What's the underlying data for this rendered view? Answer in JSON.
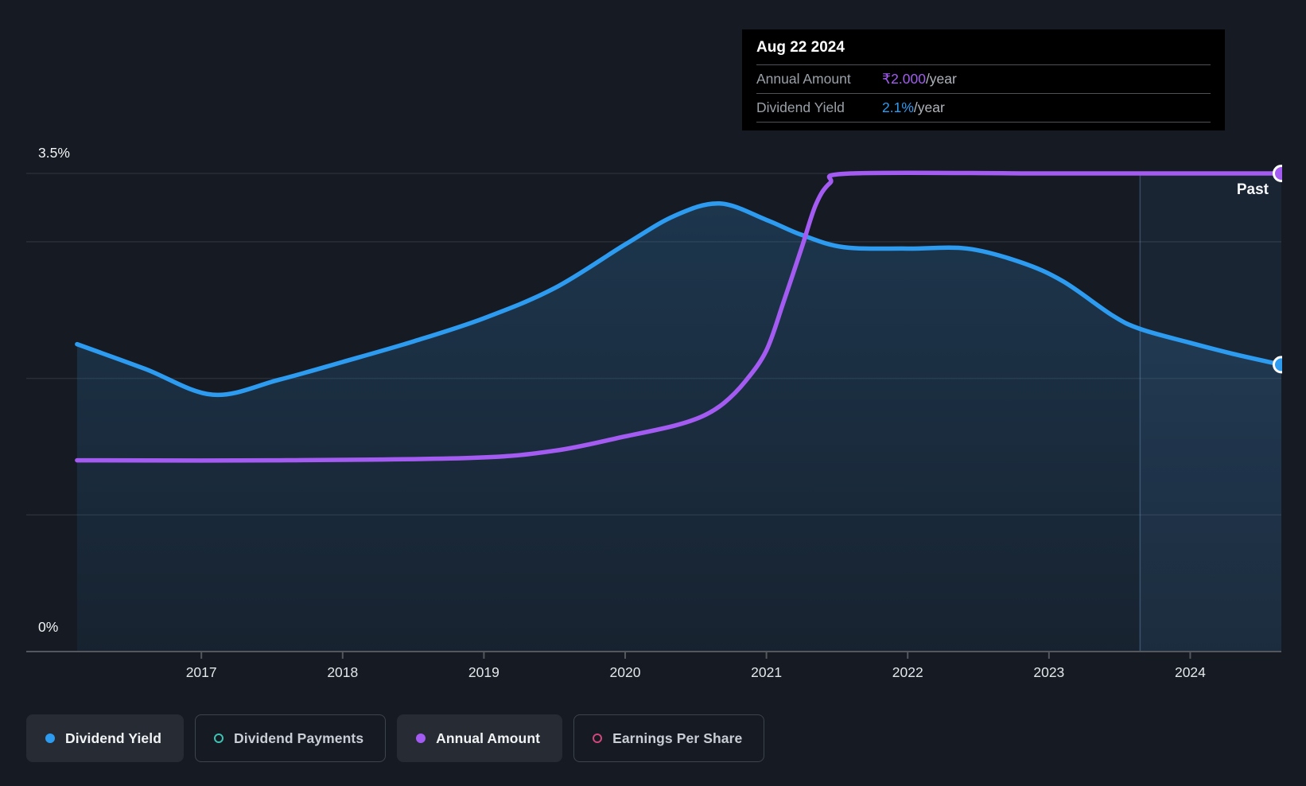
{
  "tooltip": {
    "date": "Aug 22 2024",
    "rows": [
      {
        "id": "annual-amount",
        "label": "Annual Amount",
        "value": "₹2.000",
        "suffix": "/year",
        "color": "#a35bf2"
      },
      {
        "id": "dividend-yield",
        "label": "Dividend Yield",
        "value": "2.1%",
        "suffix": "/year",
        "color": "#2d9bf0"
      }
    ]
  },
  "past_label": "Past",
  "legend": {
    "items": [
      {
        "label": "Dividend Yield",
        "marker": "filled",
        "color": "#2d9bf0",
        "active": true
      },
      {
        "label": "Dividend Payments",
        "marker": "hollow",
        "color": "#3ec2b1",
        "active": false
      },
      {
        "label": "Annual Amount",
        "marker": "filled",
        "color": "#a35bf2",
        "active": true
      },
      {
        "label": "Earnings Per Share",
        "marker": "hollow",
        "color": "#d1477b",
        "active": false
      }
    ]
  },
  "chart_data": {
    "type": "line",
    "title": "Dividend history: yield and annual amount over time",
    "x_axis": {
      "range": [
        2016.115,
        2024.645
      ],
      "ticks": [
        2017,
        2018,
        2019,
        2020,
        2021,
        2022,
        2023,
        2024
      ]
    },
    "y_axis_yield": {
      "label_top": "3.5%",
      "label_bottom": "0%",
      "range": [
        0,
        3.5
      ],
      "gridlines": [
        3.5,
        3.0,
        2.0,
        1.0
      ]
    },
    "y_axis_amount": {
      "range": [
        0,
        2.0
      ],
      "unit": "₹"
    },
    "past_band": {
      "from": 2023.645,
      "to": 2024.645
    },
    "grid": "on",
    "legend_position": "bottom",
    "series": [
      {
        "name": "Dividend Yield",
        "axis": "yield",
        "color": "#2d9bf0",
        "area": true,
        "end_marker": true,
        "points": [
          [
            2016.12,
            2.25
          ],
          [
            2016.6,
            2.07
          ],
          [
            2017.08,
            1.88
          ],
          [
            2017.55,
            1.99
          ],
          [
            2018.0,
            2.12
          ],
          [
            2018.5,
            2.27
          ],
          [
            2019.0,
            2.44
          ],
          [
            2019.5,
            2.66
          ],
          [
            2020.0,
            2.98
          ],
          [
            2020.35,
            3.19
          ],
          [
            2020.67,
            3.28
          ],
          [
            2021.0,
            3.16
          ],
          [
            2021.25,
            3.05
          ],
          [
            2021.55,
            2.96
          ],
          [
            2022.0,
            2.95
          ],
          [
            2022.42,
            2.95
          ],
          [
            2022.8,
            2.85
          ],
          [
            2023.1,
            2.71
          ],
          [
            2023.45,
            2.46
          ],
          [
            2023.65,
            2.36
          ],
          [
            2024.0,
            2.26
          ],
          [
            2024.3,
            2.18
          ],
          [
            2024.645,
            2.1
          ]
        ]
      },
      {
        "name": "Annual Amount",
        "axis": "amount",
        "color": "#a35bf2",
        "area": false,
        "end_marker": true,
        "points": [
          [
            2016.12,
            0.8
          ],
          [
            2017.5,
            0.8
          ],
          [
            2018.9,
            0.81
          ],
          [
            2019.5,
            0.84
          ],
          [
            2020.0,
            0.9
          ],
          [
            2020.35,
            0.945
          ],
          [
            2020.55,
            0.985
          ],
          [
            2020.7,
            1.04
          ],
          [
            2020.85,
            1.13
          ],
          [
            2021.0,
            1.26
          ],
          [
            2021.12,
            1.46
          ],
          [
            2021.25,
            1.69
          ],
          [
            2021.35,
            1.87
          ],
          [
            2021.45,
            1.96
          ],
          [
            2021.6,
            2.0
          ],
          [
            2023.0,
            2.0
          ],
          [
            2024.645,
            2.0
          ]
        ]
      }
    ]
  },
  "colors": {
    "background": "#151a23",
    "grid_line": "rgba(255,255,255,0.09)",
    "axis_line": "#54585e",
    "axis_text": "#e4e7ea",
    "area_top": "rgba(44,108,158,0.34)",
    "area_bottom": "rgba(44,108,158,0.10)",
    "past_band_fill": "rgba(82,142,200,0.10)",
    "past_band_edge": "rgba(130,180,230,0.30)",
    "marker_stroke": "#ffffff"
  }
}
